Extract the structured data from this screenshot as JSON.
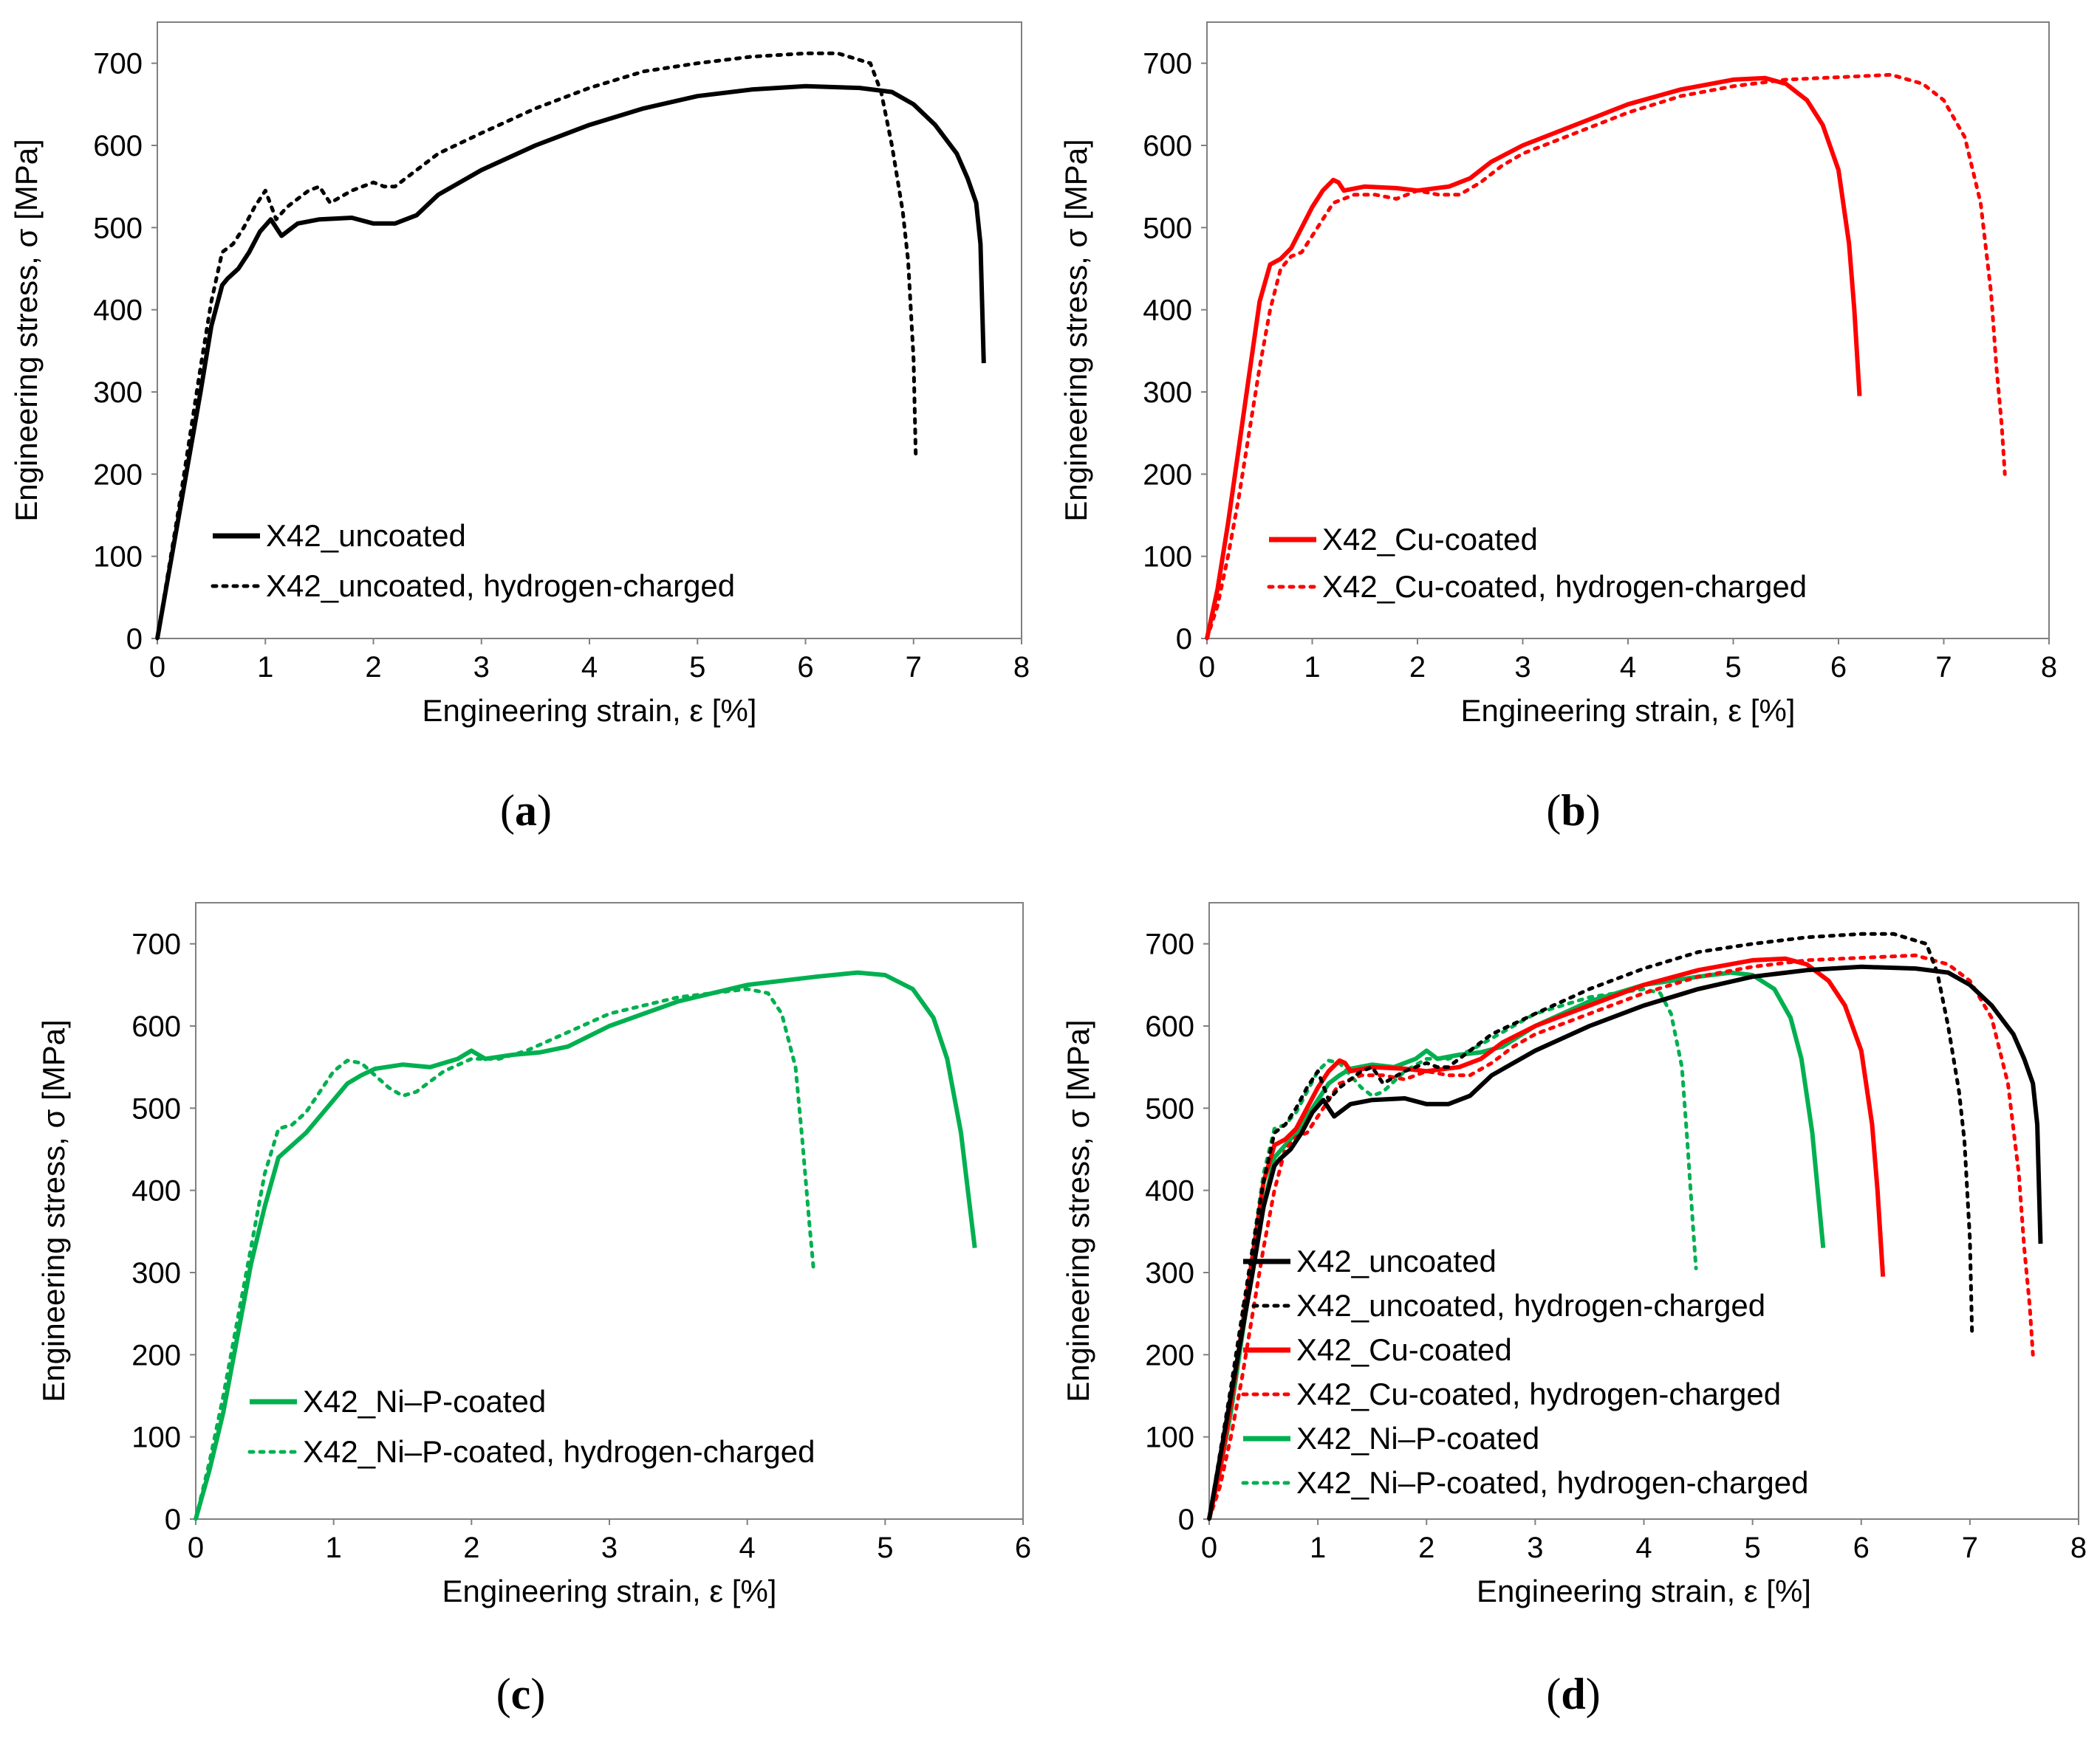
{
  "colors": {
    "black": "#000000",
    "red": "#ff0000",
    "green": "#00b050",
    "axis": "#808080"
  },
  "chart_data": [
    {
      "panel": "a",
      "type": "line",
      "title": "",
      "xlabel": "Engineering strain, ε [%]",
      "ylabel": "Engineering stress, σ [MPa]",
      "xlim": [
        0,
        8
      ],
      "ylim": [
        0,
        750
      ],
      "xticks": [
        0,
        1,
        2,
        3,
        4,
        5,
        6,
        7,
        8
      ],
      "yticks": [
        0,
        100,
        200,
        300,
        400,
        500,
        600,
        700
      ],
      "legend": "lower-left",
      "series": [
        {
          "name": "X42_uncoated",
          "color": "#000000",
          "dash": "solid",
          "x": [
            0,
            0.1,
            0.2,
            0.3,
            0.4,
            0.5,
            0.6,
            0.65,
            0.75,
            0.85,
            0.95,
            1.05,
            1.1,
            1.15,
            1.3,
            1.5,
            1.8,
            2.0,
            2.2,
            2.3,
            2.4,
            2.6,
            3.0,
            3.5,
            4.0,
            4.5,
            5.0,
            5.5,
            6.0,
            6.5,
            6.8,
            7.0,
            7.2,
            7.4,
            7.5,
            7.58,
            7.62,
            7.65
          ],
          "y": [
            0,
            75,
            150,
            225,
            300,
            380,
            430,
            438,
            450,
            470,
            495,
            510,
            500,
            490,
            505,
            510,
            512,
            505,
            505,
            510,
            515,
            540,
            570,
            600,
            625,
            645,
            660,
            668,
            672,
            670,
            665,
            650,
            625,
            590,
            560,
            530,
            480,
            335
          ]
        },
        {
          "name": "X42_uncoated, hydrogen-charged",
          "color": "#000000",
          "dash": "dotted",
          "x": [
            0,
            0.1,
            0.2,
            0.3,
            0.4,
            0.5,
            0.6,
            0.7,
            0.8,
            0.9,
            1.0,
            1.1,
            1.2,
            1.4,
            1.5,
            1.6,
            1.8,
            2.0,
            2.1,
            2.2,
            2.3,
            2.4,
            2.6,
            3.0,
            3.5,
            4.0,
            4.5,
            5.0,
            5.5,
            6.0,
            6.3,
            6.6,
            6.7,
            6.8,
            6.9,
            6.95,
            7.0,
            7.02
          ],
          "y": [
            0,
            80,
            160,
            245,
            330,
            410,
            470,
            480,
            500,
            525,
            545,
            510,
            525,
            545,
            550,
            530,
            545,
            555,
            550,
            550,
            560,
            570,
            590,
            615,
            645,
            670,
            690,
            700,
            708,
            712,
            712,
            700,
            665,
            600,
            520,
            460,
            340,
            225
          ]
        }
      ]
    },
    {
      "panel": "b",
      "type": "line",
      "title": "",
      "xlabel": "Engineering strain, ε [%]",
      "ylabel": "Engineering stress, σ [MPa]",
      "xlim": [
        0,
        8
      ],
      "ylim": [
        0,
        750
      ],
      "xticks": [
        0,
        1,
        2,
        3,
        4,
        5,
        6,
        7,
        8
      ],
      "yticks": [
        0,
        100,
        200,
        300,
        400,
        500,
        600,
        700
      ],
      "legend": "lower-left",
      "series": [
        {
          "name": "X42_Cu-coated",
          "color": "#ff0000",
          "dash": "solid",
          "x": [
            0,
            0.1,
            0.2,
            0.3,
            0.4,
            0.5,
            0.6,
            0.7,
            0.8,
            0.9,
            1.0,
            1.1,
            1.2,
            1.25,
            1.3,
            1.5,
            1.8,
            2.0,
            2.3,
            2.5,
            2.7,
            3.0,
            3.5,
            4.0,
            4.5,
            5.0,
            5.3,
            5.5,
            5.7,
            5.85,
            6.0,
            6.1,
            6.15,
            6.2
          ],
          "y": [
            0,
            60,
            140,
            230,
            320,
            410,
            455,
            462,
            475,
            500,
            525,
            545,
            558,
            555,
            545,
            550,
            548,
            545,
            550,
            560,
            580,
            600,
            625,
            650,
            668,
            680,
            682,
            675,
            655,
            625,
            570,
            480,
            400,
            295
          ]
        },
        {
          "name": "X42_Cu-coated, hydrogen-charged",
          "color": "#ff0000",
          "dash": "dotted",
          "x": [
            0,
            0.1,
            0.2,
            0.3,
            0.4,
            0.5,
            0.6,
            0.7,
            0.8,
            0.9,
            1.0,
            1.2,
            1.4,
            1.6,
            1.8,
            2.0,
            2.2,
            2.4,
            2.6,
            2.8,
            3.0,
            3.5,
            4.0,
            4.5,
            5.0,
            5.5,
            6.0,
            6.5,
            6.8,
            7.0,
            7.2,
            7.35,
            7.45,
            7.5,
            7.55,
            7.58
          ],
          "y": [
            0,
            40,
            100,
            170,
            250,
            330,
            400,
            450,
            465,
            470,
            490,
            530,
            540,
            540,
            535,
            545,
            540,
            540,
            555,
            575,
            590,
            615,
            640,
            660,
            672,
            680,
            683,
            686,
            675,
            655,
            610,
            530,
            420,
            330,
            260,
            200
          ]
        }
      ]
    },
    {
      "panel": "c",
      "type": "line",
      "title": "",
      "xlabel": "Engineering strain, ε [%]",
      "ylabel": "Engineering stress, σ [MPa]",
      "xlim": [
        0,
        6
      ],
      "ylim": [
        0,
        750
      ],
      "xticks": [
        0,
        1,
        2,
        3,
        4,
        5,
        6
      ],
      "yticks": [
        0,
        100,
        200,
        300,
        400,
        500,
        600,
        700
      ],
      "legend": "lower-left",
      "series": [
        {
          "name": "X42_Ni–P-coated",
          "color": "#00b050",
          "dash": "solid",
          "x": [
            0,
            0.1,
            0.2,
            0.3,
            0.4,
            0.5,
            0.6,
            0.7,
            0.8,
            0.9,
            1.0,
            1.1,
            1.2,
            1.3,
            1.5,
            1.7,
            1.9,
            2.0,
            2.1,
            2.3,
            2.5,
            2.7,
            3.0,
            3.5,
            4.0,
            4.5,
            4.8,
            5.0,
            5.2,
            5.35,
            5.45,
            5.55,
            5.6,
            5.65
          ],
          "y": [
            0,
            60,
            130,
            220,
            310,
            380,
            440,
            455,
            470,
            490,
            510,
            530,
            540,
            548,
            553,
            550,
            560,
            570,
            560,
            565,
            568,
            575,
            600,
            630,
            650,
            660,
            665,
            662,
            645,
            610,
            560,
            470,
            400,
            330
          ]
        },
        {
          "name": "X42_Ni–P-coated, hydrogen-charged",
          "color": "#00b050",
          "dash": "dotted",
          "x": [
            0,
            0.1,
            0.2,
            0.3,
            0.4,
            0.5,
            0.6,
            0.7,
            0.8,
            0.9,
            1.0,
            1.1,
            1.2,
            1.3,
            1.4,
            1.5,
            1.6,
            1.8,
            2.0,
            2.2,
            2.4,
            2.6,
            2.8,
            3.0,
            3.5,
            4.0,
            4.15,
            4.25,
            4.35,
            4.4,
            4.45,
            4.48
          ],
          "y": [
            0,
            70,
            150,
            240,
            330,
            420,
            475,
            480,
            495,
            520,
            545,
            558,
            555,
            540,
            525,
            515,
            520,
            545,
            560,
            560,
            570,
            585,
            600,
            615,
            635,
            645,
            640,
            615,
            550,
            460,
            360,
            305
          ]
        }
      ]
    },
    {
      "panel": "d",
      "type": "line",
      "title": "",
      "xlabel": "Engineering strain, ε [%]",
      "ylabel": "Engineering stress, σ [MPa]",
      "xlim": [
        0,
        8
      ],
      "ylim": [
        0,
        750
      ],
      "xticks": [
        0,
        1,
        2,
        3,
        4,
        5,
        6,
        7,
        8
      ],
      "yticks": [
        0,
        100,
        200,
        300,
        400,
        500,
        600,
        700
      ],
      "legend": "lower-left",
      "series_ref": [
        "a.0",
        "a.1",
        "b.0",
        "b.1",
        "c.0",
        "c.1"
      ],
      "legend_labels": [
        "X42_uncoated",
        "X42_uncoated, hydrogen-charged",
        "X42_Cu-coated",
        "X42_Cu-coated, hydrogen-charged",
        "X42_Ni–P-coated",
        "X42_Ni–P-coated, hydrogen-charged"
      ]
    }
  ],
  "panel_labels": [
    "a",
    "b",
    "c",
    "d"
  ]
}
